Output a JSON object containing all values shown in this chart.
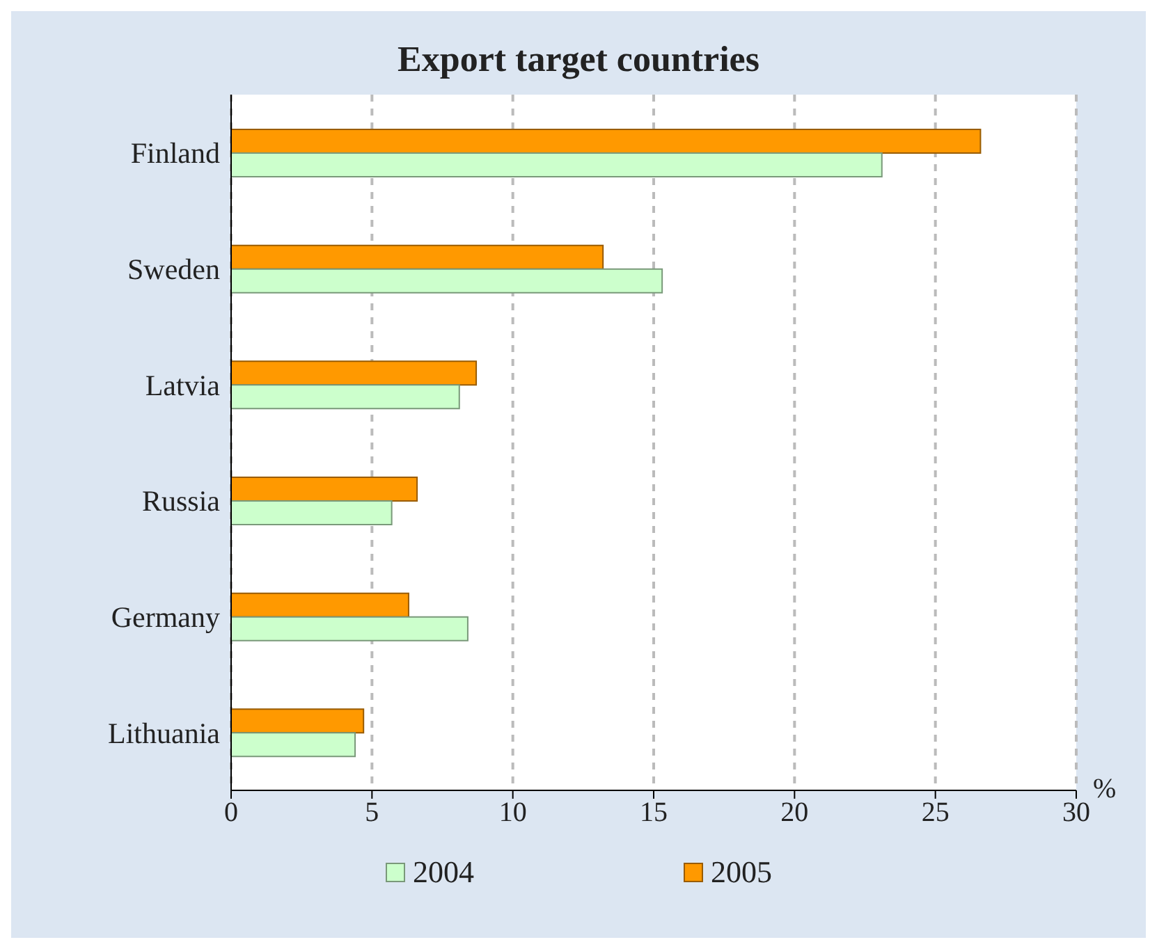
{
  "chart_data": {
    "type": "bar",
    "orientation": "horizontal",
    "title": "Export target countries",
    "xlabel": "%",
    "categories": [
      "Finland",
      "Sweden",
      "Latvia",
      "Russia",
      "Germany",
      "Lithuania"
    ],
    "series": [
      {
        "name": "2004",
        "color": "#ccffcc",
        "values": [
          23.1,
          15.3,
          8.1,
          5.7,
          8.4,
          4.4
        ]
      },
      {
        "name": "2005",
        "color": "#ff9900",
        "values": [
          26.6,
          13.2,
          8.7,
          6.6,
          6.3,
          4.7
        ]
      }
    ],
    "xlim": [
      0,
      30
    ],
    "xticks": [
      0,
      5,
      10,
      15,
      20,
      25,
      30
    ],
    "grid": "x",
    "legend": "bottom"
  }
}
